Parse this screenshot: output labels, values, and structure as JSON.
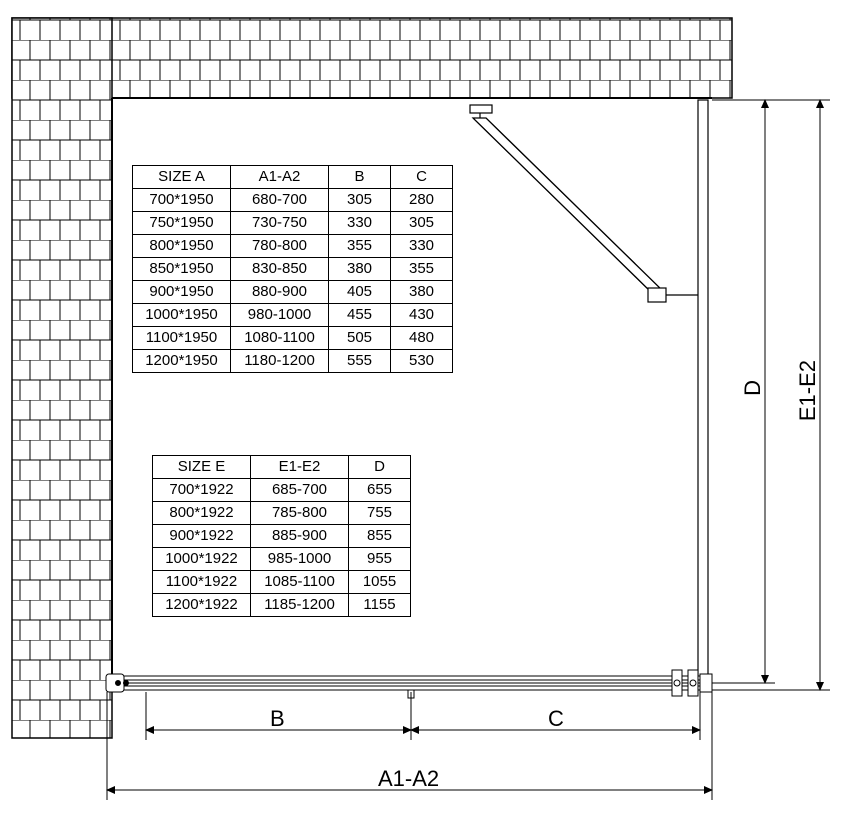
{
  "diagram": {
    "stroke": "#000000",
    "bg": "#ffffff",
    "linewidth_main": 1.2,
    "linewidth_heavy": 2,
    "linewidth_thin": 0.8
  },
  "tableA": {
    "headers": [
      "SIZE  A",
      "A1-A2",
      "B",
      "C"
    ],
    "rows": [
      [
        "700*1950",
        "680-700",
        "305",
        "280"
      ],
      [
        "750*1950",
        "730-750",
        "330",
        "305"
      ],
      [
        "800*1950",
        "780-800",
        "355",
        "330"
      ],
      [
        "850*1950",
        "830-850",
        "380",
        "355"
      ],
      [
        "900*1950",
        "880-900",
        "405",
        "380"
      ],
      [
        "1000*1950",
        "980-1000",
        "455",
        "430"
      ],
      [
        "1100*1950",
        "1080-1100",
        "505",
        "480"
      ],
      [
        "1200*1950",
        "1180-1200",
        "555",
        "530"
      ]
    ]
  },
  "tableE": {
    "headers": [
      "SIZE  E",
      "E1-E2",
      "D"
    ],
    "rows": [
      [
        "700*1922",
        "685-700",
        "655"
      ],
      [
        "800*1922",
        "785-800",
        "755"
      ],
      [
        "900*1922",
        "885-900",
        "855"
      ],
      [
        "1000*1922",
        "985-1000",
        "955"
      ],
      [
        "1100*1922",
        "1085-1100",
        "1055"
      ],
      [
        "1200*1922",
        "1185-1200",
        "1155"
      ]
    ]
  },
  "labels": {
    "B": "B",
    "C": "C",
    "A1A2": "A1-A2",
    "D": "D",
    "E1E2": "E1-E2"
  }
}
